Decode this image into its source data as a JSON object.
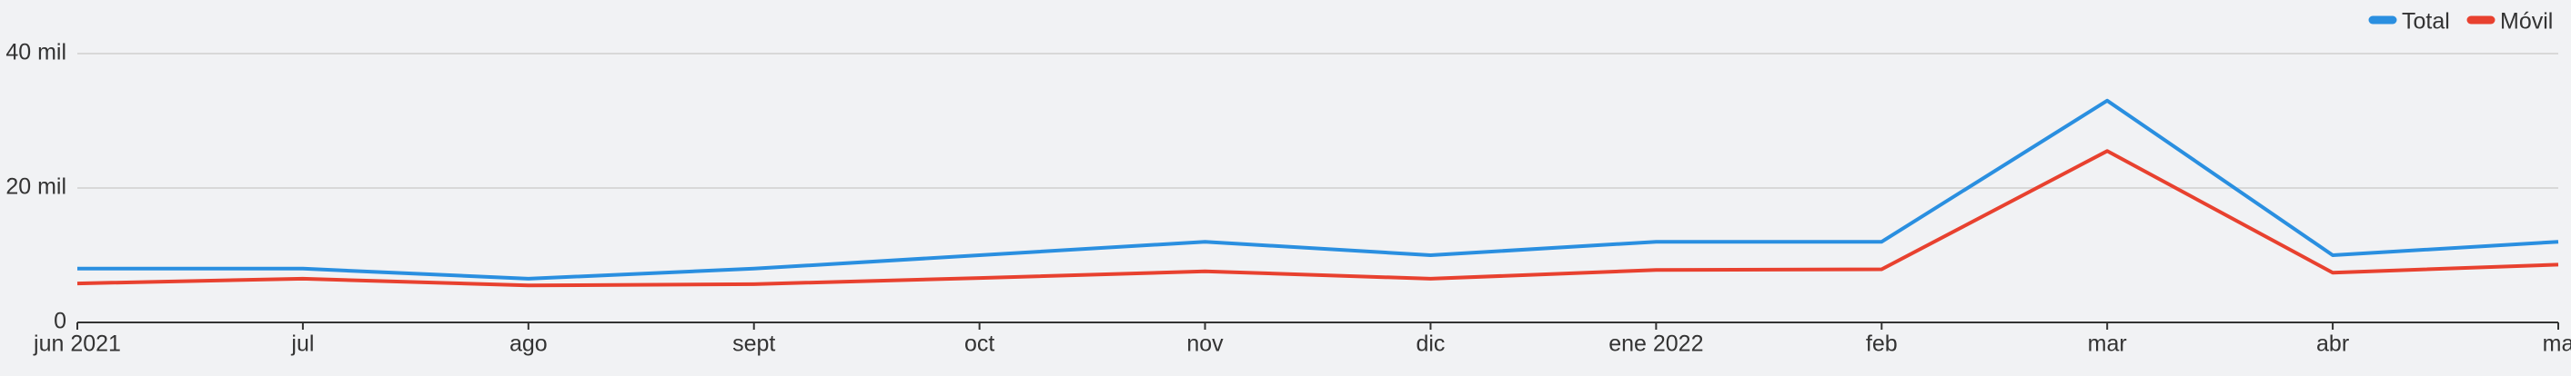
{
  "chart_data": {
    "type": "line",
    "categories": [
      "jun 2021",
      "jul",
      "ago",
      "sept",
      "oct",
      "nov",
      "dic",
      "ene 2022",
      "feb",
      "mar",
      "abr",
      "ma"
    ],
    "series": [
      {
        "name": "Total",
        "color": "#2a8fe0",
        "values": [
          8000,
          8000,
          6500,
          8000,
          10000,
          12000,
          10000,
          12000,
          12000,
          33000,
          10000,
          12000
        ]
      },
      {
        "name": "Móvil",
        "color": "#e8412f",
        "values": [
          5800,
          6500,
          5500,
          5700,
          6600,
          7600,
          6500,
          7800,
          7900,
          25500,
          7400,
          8600
        ]
      }
    ],
    "ylim": [
      0,
      40000
    ],
    "yticks": [
      0,
      {
        "value": 20000,
        "label": "20 mil"
      },
      {
        "value": 40000,
        "label": "40 mil"
      }
    ],
    "grid": true,
    "legend": "top-right"
  }
}
